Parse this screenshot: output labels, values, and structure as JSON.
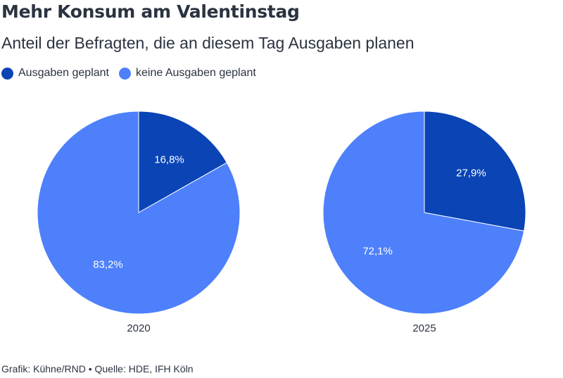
{
  "title": "Mehr Konsum am Valentinstag",
  "subtitle": "Anteil der Befragten, die an diesem Tag Ausgaben planen",
  "footer": "Grafik: Kühne/RND • Quelle: HDE, IFH Köln",
  "colors": {
    "planned": "#0a44b5",
    "not_planned": "#4e80fb",
    "label_text": "#ffffff",
    "axis_text": "#2b3340"
  },
  "chart_data": [
    {
      "type": "pie",
      "title": "2020",
      "categories": [
        "Ausgaben geplant",
        "keine Ausgaben geplant"
      ],
      "values": [
        16.8,
        83.2
      ],
      "value_labels": [
        "16,8%",
        "83,2%"
      ],
      "legend": "top-left"
    },
    {
      "type": "pie",
      "title": "2025",
      "categories": [
        "Ausgaben geplant",
        "keine Ausgaben geplant"
      ],
      "values": [
        27.9,
        72.1
      ],
      "value_labels": [
        "27,9%",
        "72,1%"
      ],
      "legend": "top-left"
    }
  ],
  "legend": {
    "items": [
      {
        "label": "Ausgaben geplant",
        "color": "#0a44b5"
      },
      {
        "label": "keine Ausgaben geplant",
        "color": "#4e80fb"
      }
    ]
  }
}
